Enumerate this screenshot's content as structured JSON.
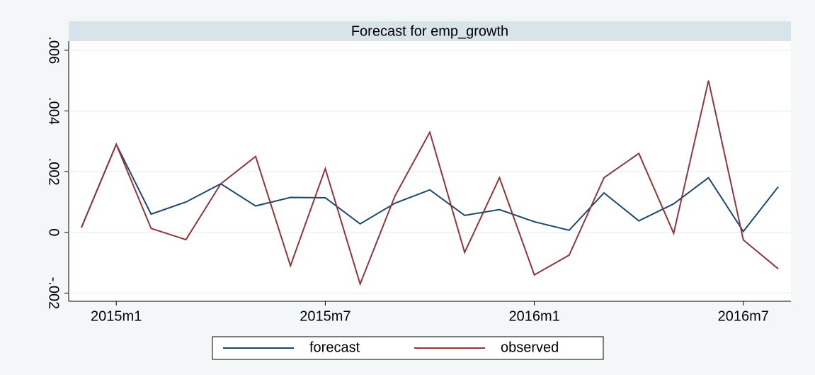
{
  "chart_data": {
    "type": "line",
    "title": "Forecast for emp_growth",
    "categories": [
      null,
      "2015m1",
      null,
      null,
      null,
      null,
      null,
      "2015m7",
      null,
      null,
      null,
      null,
      null,
      "2016m1",
      null,
      null,
      null,
      null,
      null,
      "2016m7",
      null
    ],
    "series": [
      {
        "name": "forecast",
        "color": "#1a476f",
        "values": [
          0.00016,
          0.0029,
          0.0006,
          0.001,
          0.0016,
          0.00087,
          0.00115,
          0.00114,
          0.00028,
          0.00096,
          0.0014,
          0.00056,
          0.00075,
          0.00035,
          7e-05,
          0.0013,
          0.00038,
          0.00094,
          0.0018,
          3e-05,
          0.0015
        ]
      },
      {
        "name": "observed",
        "color": "#90353b",
        "values": [
          0.00016,
          0.0029,
          0.00013,
          -0.00024,
          0.0016,
          0.0025,
          -0.0011,
          0.0021,
          -0.0017,
          0.0012,
          0.0033,
          -0.00066,
          0.0018,
          -0.0014,
          -0.00075,
          0.0018,
          0.0026,
          -3e-05,
          0.005,
          -0.00025,
          -0.0012
        ]
      }
    ],
    "ylim": [
      -0.00227,
      0.0063
    ],
    "yticks": [
      {
        "value": -0.002,
        "label": "-.002"
      },
      0,
      {
        "value": 0.002,
        "label": ".002"
      },
      {
        "value": 0.004,
        "label": ".004"
      },
      {
        "value": 0.006,
        "label": ".006"
      }
    ],
    "grid": true
  }
}
